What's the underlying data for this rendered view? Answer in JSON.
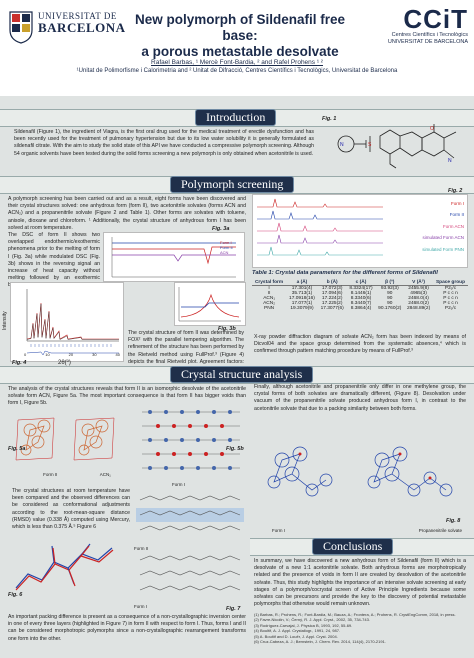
{
  "header": {
    "ub_line1": "UNIVERSITAT DE",
    "ub_line2": "BARCELONA",
    "ccit_word": "CCiT",
    "ccit_sub1": "Centres Científics i Tecnològics",
    "ccit_sub2": "UNIVERSITAT DE BARCELONA",
    "title_line1": "New polymorph of Sildenafil free base:",
    "title_line2": "a porous metastable desolvate",
    "authors": "Rafael Barbas, ¹ Mercè Font-Bardia, ² and Rafel Prohens ¹ ²",
    "affiliations": "¹Unitat de Polimorfisme i Calorimetria and ² Unitat de Difracció, Centres Científics i Tecnològics, Universitat de Barcelona"
  },
  "intro": {
    "heading": "Introduction",
    "text": "Sildenafil (Figure 1), the ingredient of Viagra, is the first oral drug used for the medical treatment of erectile dysfunction and has been recently used for the treatment of pulmonary hypertension but due to its low water solubility it is generally formulated as sildenafil citrate. With the aim to study the solid state of this API we have conducted a compressive polymorph screening. Although 54 organic solvents have been tested during the solid forms screening a new polymorph is only obtained when acetonitrile is used.",
    "fig1_label": "Fig. 1"
  },
  "polymorph": {
    "heading": "Polymorph screening",
    "text1": "A polymorph screening has been carried out and as a result, eight forms have been discovered and their crystal structures solved: one anhydrous form (form II), two acetonitrile solvates (forms ACN and ACN₂) and a propanenitrile solvate (Figure 2 and Table 1). Other forms are solvates with toluene, anisole, dioxane and chloroform. ¹ Additionally, the crystal structure of anhydrous form I has been solved at room temperature.",
    "text2": "The DSC of form II shows two overlapped endothermic/exothermic phenomena prior to the melting of form I (Fig. 3a) while modulated DSC (Fig. 3b) shows in the reversing signal an increase of heat capacity without melting followed by an exothermic broad peak in the non-reversing signal.",
    "fig3a_label": "Fig. 3a",
    "fig3b_label": "Fig. 3b",
    "fig4_label": "Fig. 4",
    "text3": "The crystal structure of form II was determined by FOX² with the parallel tempering algorithm. The refinement of the structure has been performed by the Rietveld method using FullProf.³ (Figure 4) depicts the final Rietveld plot. Agreement factors: Rwp = 12.3%, Chi² = 4.8",
    "xrpd_ylabel": "Intensity",
    "xrpd_xlabel": "2θ(º)",
    "xrpd_ticks": [
      "0",
      "10",
      "20",
      "30",
      "40"
    ],
    "dsc_legend": [
      "Form I",
      "Form II",
      "ACN"
    ],
    "fig2_label": "Fig. 2",
    "pxrd_legend": [
      "Form I",
      "Form II",
      "Form ACN",
      "simulated Form ACN",
      "simulated Form PNN"
    ]
  },
  "table": {
    "title": "Table 1: Crystal data parameters for the different forms of Sildenafil",
    "headers": [
      "Crystal form",
      "a (Å)",
      "b (Å)",
      "c (Å)",
      "β (º)",
      "V (Å³)",
      "Space group"
    ],
    "rows": [
      [
        "I",
        "17.301(4)",
        "17.072(3)",
        "8.3324(17)",
        "93.92(3)",
        "2455.9(8)",
        "P2₁/c"
      ],
      [
        "II",
        "35.713(1)",
        "17.094(6)",
        "8.1446(1)",
        "90",
        "4965(3)",
        "P c c n"
      ],
      [
        "ACN₁",
        "17.0918(16)",
        "17.224(2)",
        "8.3340(6)",
        "90",
        "2468.0(4)",
        "P c c n"
      ],
      [
        "ACN₂",
        "17.077(1)",
        "17.225(2)",
        "8.3440(7)",
        "90",
        "2468.0(2)",
        "P c c n"
      ],
      [
        "PNN",
        "19.3079(9)",
        "17.3077(6)",
        "8.3864(4)",
        "90.1760(2)",
        "2848.89(2)",
        "P2₁/c"
      ]
    ],
    "note": "X-ray powder diffraction diagram of solvate ACN₂ form has been indexed by means of Dicvol04 and the space group determined from the systematic absences,⁴ which is confirmed through pattern matching procedure by means of FullProf.³"
  },
  "crystal": {
    "heading": "Crystal structure analysis",
    "text1": "The analysis of the crystal structures reveals that form II is an isomorphic desolvate of the acetonitrile solvate form ACN, Figure 5a. The most important consequence is that form II has bigger voids than form I, Figure 5b.",
    "fig5a_label": "Fig. 5a",
    "fig5b_label": "Fig. 5b",
    "fig5a_captions": [
      "Form II",
      "ACN₁"
    ],
    "fig5b_caption": "Form I",
    "text2": "The crystal structures at room temperature have been compared and the observed differences can be considered as conformational adjustments according to the root-mean-square distance (RMSD) value (0.338 Å) computed using Mercury, which is less than 0.375 Å.⁵ Figure 6",
    "fig6_label": "Fig. 6",
    "fig7_label": "Fig. 7",
    "fig7_captions": [
      "Form II",
      "Form I"
    ],
    "text3": "An important packing difference is present as a consequence of a non-crystallographic inversion center in one of every three layers (highlighted in Figure 7) in form II with respect to form I. Thus, forms I and II can be considered morphotropic polymorphs since a non-crystallographic rearrangement transforms one form into the other.",
    "text4": "Finally, although acetonitrile and propanenitrile only differ in one methylene group, the crystal forms of both solvates are dramatically different, (Figure 8). Desolvation under vacuum of the propanenitrile solvate produced anhydrous form I, in contrast to the acetonitrile solvate that due to a packing similarity between both forms.",
    "fig8_label": "Fig. 8",
    "fig8_captions": [
      "Form I",
      "Propanenitrile solvate"
    ]
  },
  "conclusions": {
    "heading": "Conclusions",
    "text": "In summary, we have discovered a new anhydrous form of Sildenafil (form II) which is a desolvate of a new 1:1 acetonitrile solvate. Both anhydrous forms are morphotropically related and the presence of voids in form II are created by desolvation of the acetonitrile solvate. Thus, this study highlights the importance of an intensive solvate screening at early stages of a polymorph/cocrystal screen of Active Principle Ingredients because some solvates can be precursors and provide the key to the discovery of potential metastable polymorphs that otherwise would remain unknown."
  },
  "references": [
    "(1) Barbas, R.; Prohens, R.; Font-Bardia, M.; Bauza, A.; Frontera, A.; Prohens, R. CrystEngComm, 2018, in press.",
    "(2) Favre-Nicolin, V.; Černý, R. J. Appl. Cryst., 2002, 35, 734-743.",
    "(3) Rodríguez-Carvajal, J. Physica B, 1993, 192, 55-69.",
    "(4) Boultif, A. J. Appl. Crystallogr., 1991, 24, 987.",
    "(5) A. Boultif and D. Louër, J. Appl. Cryst. 2004.",
    "(6) Cruz-Cabeza, A. J.; Bernstein, J. Chem. Rev. 2014, 114(4), 2170-2191."
  ],
  "colors": {
    "navy": "#1f2f4a",
    "panel": "#f6f7f6",
    "red_trace": "#cc2222",
    "blue_trace": "#2244aa",
    "pink_trace": "#d4447a",
    "purple_trace": "#8a44aa"
  }
}
